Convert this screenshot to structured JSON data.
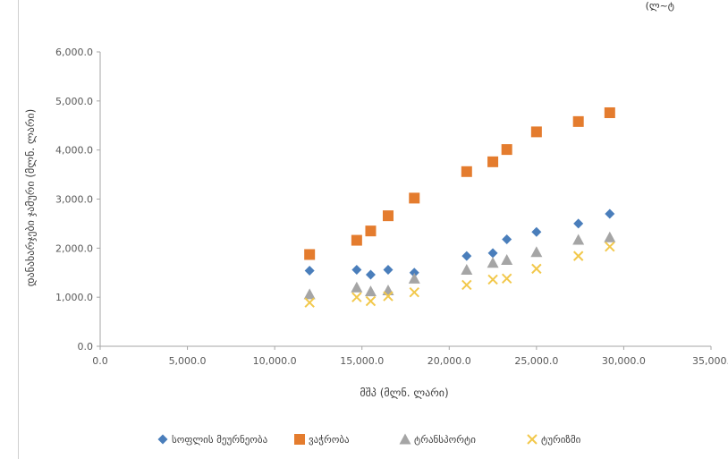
{
  "header_fragment": "(ლ~ტ",
  "chart_data": {
    "type": "scatter",
    "xlabel": "მშპ (მლნ. ლარი)",
    "ylabel": "დანახარჯები ჯამური (მლნ. ლარი)",
    "xlim": [
      0,
      35000
    ],
    "ylim": [
      0,
      6000
    ],
    "x_ticks": [
      "0.0",
      "5,000.0",
      "10,000.0",
      "15,000.0",
      "20,000.0",
      "25,000.0",
      "30,000.0",
      "35,000."
    ],
    "y_ticks": [
      "0.0",
      "1,000.0",
      "2,000.0",
      "3,000.0",
      "4,000.0",
      "5,000.0",
      "6,000.0"
    ],
    "grid": false,
    "legend_position": "bottom",
    "series": [
      {
        "name": "სოფლის მეურნეობა",
        "color": "#4a7ebb",
        "marker": "diamond",
        "points": [
          [
            12000,
            1540
          ],
          [
            14700,
            1560
          ],
          [
            15500,
            1460
          ],
          [
            16500,
            1560
          ],
          [
            18000,
            1500
          ],
          [
            21000,
            1840
          ],
          [
            22500,
            1900
          ],
          [
            23300,
            2180
          ],
          [
            25000,
            2330
          ],
          [
            27400,
            2500
          ],
          [
            29200,
            2700
          ]
        ]
      },
      {
        "name": "ვაჭრობა",
        "color": "#e47c2e",
        "marker": "square",
        "points": [
          [
            12000,
            1870
          ],
          [
            14700,
            2160
          ],
          [
            15500,
            2350
          ],
          [
            16500,
            2660
          ],
          [
            18000,
            3020
          ],
          [
            21000,
            3560
          ],
          [
            22500,
            3760
          ],
          [
            23300,
            4010
          ],
          [
            25000,
            4370
          ],
          [
            27400,
            4580
          ],
          [
            29200,
            4760
          ]
        ]
      },
      {
        "name": "ტრანსპორტი",
        "color": "#a5a5a5",
        "marker": "triangle",
        "points": [
          [
            12000,
            1060
          ],
          [
            14700,
            1200
          ],
          [
            15500,
            1120
          ],
          [
            16500,
            1140
          ],
          [
            18000,
            1380
          ],
          [
            21000,
            1560
          ],
          [
            22500,
            1700
          ],
          [
            23300,
            1760
          ],
          [
            25000,
            1920
          ],
          [
            27400,
            2170
          ],
          [
            29200,
            2220
          ]
        ]
      },
      {
        "name": "ტურიზმი",
        "color": "#f2c84b",
        "marker": "x",
        "points": [
          [
            12000,
            890
          ],
          [
            14700,
            1000
          ],
          [
            15500,
            920
          ],
          [
            16500,
            1020
          ],
          [
            18000,
            1100
          ],
          [
            21000,
            1250
          ],
          [
            22500,
            1360
          ],
          [
            23300,
            1380
          ],
          [
            25000,
            1580
          ],
          [
            27400,
            1840
          ],
          [
            29200,
            2030
          ]
        ]
      }
    ]
  }
}
